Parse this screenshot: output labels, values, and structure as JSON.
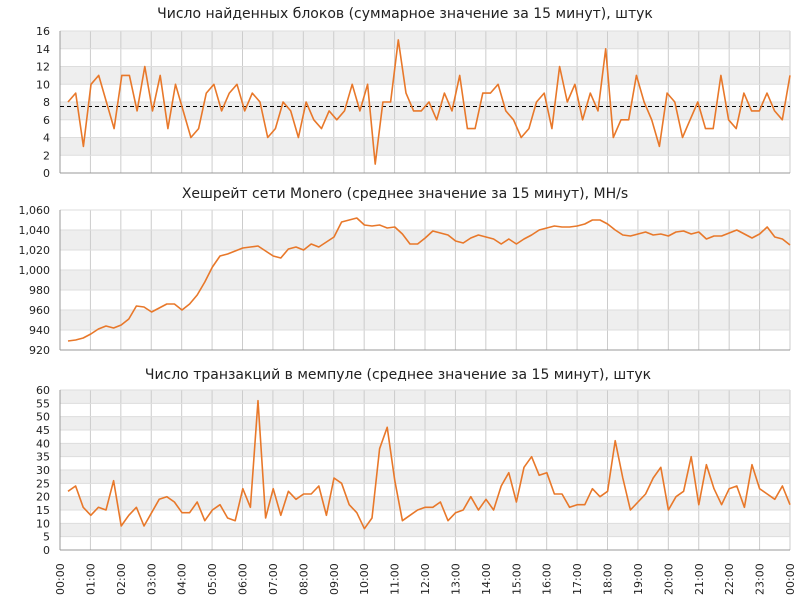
{
  "chart_data": [
    {
      "type": "line",
      "title": "Число найденных блоков (суммарное значение за 15 минут), штук",
      "ylim": [
        0,
        16
      ],
      "yticks": [
        0,
        2,
        4,
        6,
        8,
        10,
        12,
        14,
        16
      ],
      "ytick_labels": [
        "0",
        "2",
        "4",
        "6",
        "8",
        "10",
        "12",
        "14",
        "16"
      ],
      "reference_line": 7.5,
      "grid": true,
      "series": [
        {
          "color": "#e8782a",
          "values": [
            8,
            9,
            3,
            10,
            11,
            8,
            5,
            11,
            11,
            7,
            12,
            7,
            11,
            5,
            10,
            7,
            4,
            5,
            9,
            10,
            7,
            9,
            10,
            7,
            9,
            8,
            4,
            5,
            8,
            7,
            4,
            8,
            6,
            5,
            7,
            6,
            7,
            10,
            7,
            10,
            1,
            8,
            8,
            15,
            9,
            7,
            7,
            8,
            6,
            9,
            7,
            11,
            5,
            5,
            9,
            9,
            10,
            7,
            6,
            4,
            5,
            8,
            9,
            5,
            12,
            8,
            10,
            6,
            9,
            7,
            14,
            4,
            6,
            6,
            11,
            8,
            6,
            3,
            9,
            8,
            4,
            6,
            8,
            5,
            5,
            11,
            6,
            5,
            9,
            7,
            7,
            9,
            7,
            6,
            11
          ]
        }
      ]
    },
    {
      "type": "line",
      "title": "Хешрейт сети Monero (среднее значение за 15 минут), MH/s",
      "ylim": [
        920,
        1060
      ],
      "yticks": [
        920,
        940,
        960,
        980,
        1000,
        1020,
        1040,
        1060
      ],
      "ytick_labels": [
        "920",
        "940",
        "960",
        "980",
        "1,000",
        "1,020",
        "1,040",
        "1,060"
      ],
      "grid": true,
      "series": [
        {
          "color": "#e8782a",
          "values": [
            929,
            930,
            932,
            936,
            941,
            944,
            942,
            945,
            951,
            964,
            963,
            958,
            962,
            966,
            966,
            960,
            966,
            975,
            988,
            1003,
            1014,
            1016,
            1019,
            1022,
            1023,
            1024,
            1019,
            1014,
            1012,
            1021,
            1023,
            1020,
            1026,
            1023,
            1028,
            1033,
            1048,
            1050,
            1052,
            1045,
            1044,
            1045,
            1042,
            1043,
            1036,
            1026,
            1026,
            1032,
            1039,
            1037,
            1035,
            1029,
            1027,
            1032,
            1035,
            1033,
            1031,
            1026,
            1031,
            1026,
            1031,
            1035,
            1040,
            1042,
            1044,
            1043,
            1043,
            1044,
            1046,
            1050,
            1050,
            1046,
            1040,
            1035,
            1034,
            1036,
            1038,
            1035,
            1036,
            1034,
            1038,
            1039,
            1036,
            1038,
            1031,
            1034,
            1034,
            1037,
            1040,
            1036,
            1032,
            1036,
            1043,
            1033,
            1031,
            1025
          ]
        }
      ]
    },
    {
      "type": "line",
      "title": "Число транзакций в мемпуле (среднее значение за 15 минут), штук",
      "ylim": [
        0,
        60
      ],
      "yticks": [
        0,
        5,
        10,
        15,
        20,
        25,
        30,
        35,
        40,
        45,
        50,
        55,
        60
      ],
      "ytick_labels": [
        "0",
        "5",
        "10",
        "15",
        "20",
        "25",
        "30",
        "35",
        "40",
        "45",
        "50",
        "55",
        "60"
      ],
      "grid": true,
      "series": [
        {
          "color": "#e8782a",
          "values": [
            22,
            24,
            16,
            13,
            16,
            15,
            26,
            9,
            13,
            16,
            9,
            14,
            19,
            20,
            18,
            14,
            14,
            18,
            11,
            15,
            17,
            12,
            11,
            23,
            16,
            56,
            12,
            23,
            13,
            22,
            19,
            21,
            21,
            24,
            13,
            27,
            25,
            17,
            14,
            8,
            12,
            38,
            46,
            26,
            11,
            13,
            15,
            16,
            16,
            18,
            11,
            14,
            15,
            20,
            15,
            19,
            15,
            24,
            29,
            18,
            31,
            35,
            28,
            29,
            21,
            21,
            16,
            17,
            17,
            23,
            20,
            22,
            41,
            27,
            15,
            18,
            21,
            27,
            31,
            15,
            20,
            22,
            35,
            17,
            32,
            23,
            17,
            23,
            24,
            16,
            32,
            23,
            21,
            19,
            24,
            17
          ]
        }
      ]
    }
  ],
  "x_axis": {
    "tick_labels": [
      "00:00",
      "01:00",
      "02:00",
      "03:00",
      "04:00",
      "05:00",
      "06:00",
      "07:00",
      "08:00",
      "09:00",
      "10:00",
      "11:00",
      "12:00",
      "13:00",
      "14:00",
      "15:00",
      "16:00",
      "17:00",
      "18:00",
      "19:00",
      "20:00",
      "21:00",
      "22:00",
      "23:00",
      "00:00"
    ]
  },
  "style": {
    "line_color": "#e8782a",
    "band_color": "#eeeeee",
    "grid_color": "#cccccc",
    "reference_color": "#000000"
  }
}
